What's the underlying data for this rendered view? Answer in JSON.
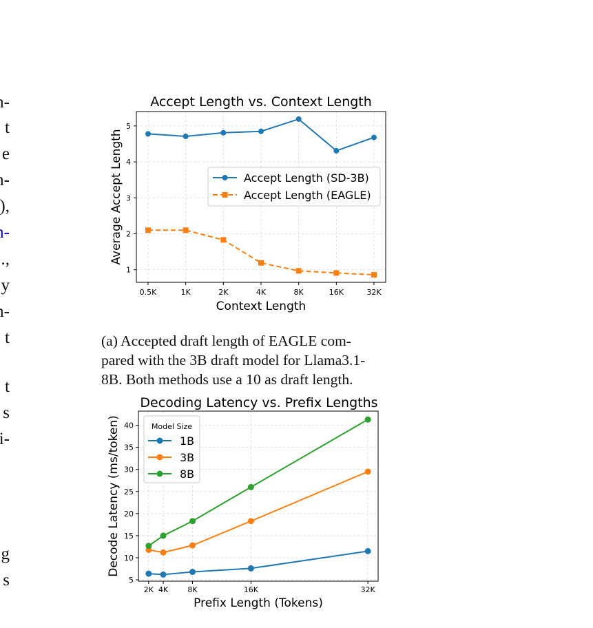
{
  "left_text": [
    {
      "text": "n-",
      "color": "#111111"
    },
    {
      "text": "t",
      "color": "#111111"
    },
    {
      "text": "e",
      "color": "#111111"
    },
    {
      "text": "n-",
      "color": "#111111"
    },
    {
      "text": "),",
      "color": "#111111"
    },
    {
      "text": "n-",
      "color": "#0000b0"
    },
    {
      "text": ".,",
      "color": "#111111"
    },
    {
      "text": "y",
      "color": "#111111"
    },
    {
      "text": "n-",
      "color": "#111111"
    },
    {
      "text": "t",
      "color": "#111111"
    },
    {
      "text": "t",
      "color": "#111111"
    },
    {
      "text": "s",
      "color": "#111111"
    },
    {
      "text": "i-",
      "color": "#111111"
    },
    {
      "text": "g",
      "color": "#111111"
    },
    {
      "text": "s",
      "color": "#111111"
    }
  ],
  "caption_a": [
    "(a) Accepted draft length of EAGLE com-",
    "pared with the 3B draft model for Llama3.1-",
    "8B. Both methods use a 10 as draft length."
  ],
  "chart_data": [
    {
      "type": "line",
      "title": "Accept Length vs. Context Length",
      "xlabel": "Context Length",
      "ylabel": "Average Accept Length",
      "categories": [
        "0.5K",
        "1K",
        "2K",
        "4K",
        "8K",
        "16K",
        "32K"
      ],
      "yticks": [
        1,
        2,
        3,
        4,
        5
      ],
      "ylim": [
        0.65,
        5.4
      ],
      "grid": true,
      "legend_position": "center-right",
      "series": [
        {
          "name": "Accept Length (SD-3B)",
          "values": [
            4.78,
            4.71,
            4.81,
            4.85,
            5.19,
            4.31,
            4.68
          ],
          "color": "#1f77b4",
          "marker": "circle",
          "dash": "solid"
        },
        {
          "name": "Accept Length (EAGLE)",
          "values": [
            2.1,
            2.1,
            1.83,
            1.19,
            0.97,
            0.91,
            0.86
          ],
          "color": "#ff7f0e",
          "marker": "square",
          "dash": "dashed"
        }
      ]
    },
    {
      "type": "line",
      "title": "Decoding Latency vs. Prefix Lengths",
      "xlabel": "Prefix Length (Tokens)",
      "ylabel": "Decode Latency (ms/token)",
      "x": [
        2,
        4,
        8,
        16,
        32
      ],
      "xticks": [
        2,
        4,
        8,
        16,
        32
      ],
      "xticklabels": [
        "2K",
        "4K",
        "8K",
        "16K",
        "32K"
      ],
      "yticks": [
        5,
        10,
        15,
        20,
        25,
        30,
        35,
        40
      ],
      "xlim": [
        0.6,
        33.4
      ],
      "ylim": [
        4.7,
        43.2
      ],
      "grid": true,
      "legend_title": "Model Size",
      "legend_position": "top-left",
      "series": [
        {
          "name": "1B",
          "values": [
            6.4,
            6.2,
            6.8,
            7.6,
            11.5
          ],
          "color": "#1f77b4"
        },
        {
          "name": "3B",
          "values": [
            11.8,
            11.2,
            12.8,
            18.3,
            29.5
          ],
          "color": "#ff7f0e"
        },
        {
          "name": "8B",
          "values": [
            12.7,
            15.0,
            18.3,
            26.0,
            41.3
          ],
          "color": "#2ca02c"
        }
      ]
    }
  ]
}
